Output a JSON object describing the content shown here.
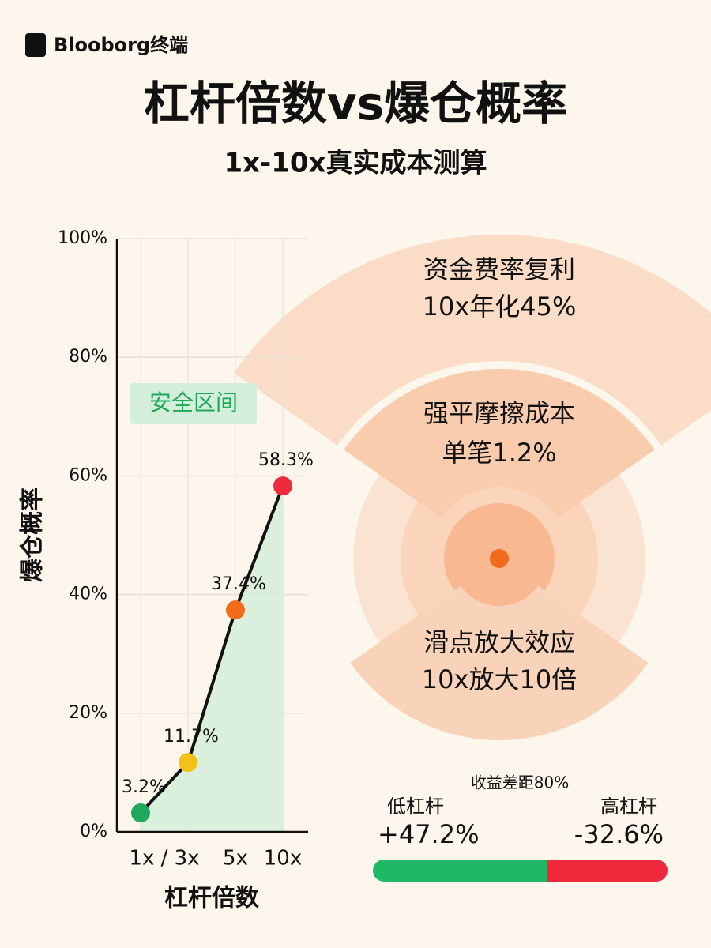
{
  "header": {
    "brand": "Blooborg终端",
    "title": "杠杆倍数vs爆仓概率",
    "subtitle": "1x-10x真实成本测算"
  },
  "chart_data": {
    "type": "line",
    "categories": [
      "1x / 3x",
      null,
      "5x",
      "10x"
    ],
    "values": [
      3.2,
      11.7,
      37.4,
      58.3
    ],
    "value_labels": [
      "3.2%",
      "11.7%",
      "37.4%",
      "58.3%"
    ],
    "point_colors": [
      "#1fa85a",
      "#f2c21b",
      "#f26b1d",
      "#ee2a3c"
    ],
    "color": "#111111",
    "ylim": [
      0,
      100
    ],
    "yticks": [
      {
        "value": 0,
        "label": "0%"
      },
      {
        "value": 20,
        "label": "20%"
      },
      {
        "value": 40,
        "label": "40%"
      },
      {
        "value": 60,
        "label": "60%"
      },
      {
        "value": 80,
        "label": "80%"
      },
      {
        "value": 100,
        "label": "100%"
      }
    ],
    "grid": true,
    "xlabel": "杠杆倍数",
    "ylabel": "爆仓概率",
    "annotation": "安全区间"
  },
  "panels": [
    {
      "title": "资金费率复利",
      "detail": "10x年化45%"
    },
    {
      "title": "强平摩擦成本",
      "detail": "单笔1.2%"
    },
    {
      "title": "滑点放大效应",
      "detail": "10x放大10倍"
    }
  ],
  "comparison": {
    "type": "bar",
    "title": "收益差距80%",
    "series": [
      {
        "name": "低杠杆",
        "value_label": "+47.2%",
        "value": 47.2,
        "color": "#1fb865"
      },
      {
        "name": "高杠杆",
        "value_label": "-32.6%",
        "value": -32.6,
        "color": "#f0283c"
      }
    ]
  }
}
